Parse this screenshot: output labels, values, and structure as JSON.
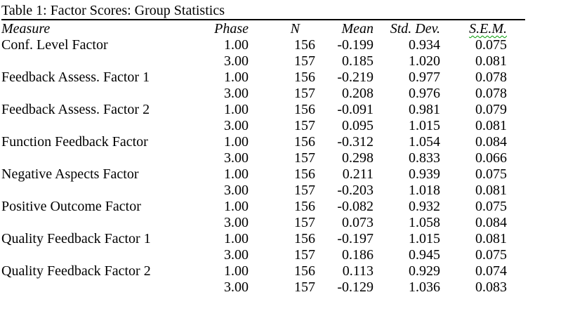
{
  "colors": {
    "background": "#ffffff",
    "text": "#000000",
    "caption_rule": "#000000",
    "sem_squiggle": "#009900"
  },
  "table": {
    "title": "Table 1: Factor Scores: Group Statistics",
    "columns": {
      "measure": "Measure",
      "phase": "Phase",
      "n": "N",
      "mean": "Mean",
      "std_dev": "Std. Dev.",
      "sem": "S.E.M."
    },
    "rows": [
      {
        "measure": "Conf. Level Factor",
        "phase": "1.00",
        "n": "156",
        "mean": "-0.199",
        "std_dev": "0.934",
        "sem": "0.075"
      },
      {
        "measure": "",
        "phase": "3.00",
        "n": "157",
        "mean": "0.185",
        "std_dev": "1.020",
        "sem": "0.081"
      },
      {
        "measure": "Feedback Assess. Factor 1",
        "phase": "1.00",
        "n": "156",
        "mean": "-0.219",
        "std_dev": "0.977",
        "sem": "0.078"
      },
      {
        "measure": "",
        "phase": "3.00",
        "n": "157",
        "mean": "0.208",
        "std_dev": "0.976",
        "sem": "0.078"
      },
      {
        "measure": "Feedback Assess. Factor 2",
        "phase": "1.00",
        "n": "156",
        "mean": "-0.091",
        "std_dev": "0.981",
        "sem": "0.079"
      },
      {
        "measure": "",
        "phase": "3.00",
        "n": "157",
        "mean": "0.095",
        "std_dev": "1.015",
        "sem": "0.081"
      },
      {
        "measure": "Function Feedback Factor",
        "phase": "1.00",
        "n": "156",
        "mean": "-0.312",
        "std_dev": "1.054",
        "sem": "0.084"
      },
      {
        "measure": "",
        "phase": "3.00",
        "n": "157",
        "mean": "0.298",
        "std_dev": "0.833",
        "sem": "0.066"
      },
      {
        "measure": "Negative Aspects Factor",
        "phase": "1.00",
        "n": "156",
        "mean": "0.211",
        "std_dev": "0.939",
        "sem": "0.075"
      },
      {
        "measure": "",
        "phase": "3.00",
        "n": "157",
        "mean": "-0.203",
        "std_dev": "1.018",
        "sem": "0.081"
      },
      {
        "measure": "Positive Outcome Factor",
        "phase": "1.00",
        "n": "156",
        "mean": "-0.082",
        "std_dev": "0.932",
        "sem": "0.075"
      },
      {
        "measure": "",
        "phase": "3.00",
        "n": "157",
        "mean": "0.073",
        "std_dev": "1.058",
        "sem": "0.084"
      },
      {
        "measure": "Quality Feedback Factor 1",
        "phase": "1.00",
        "n": "156",
        "mean": "-0.197",
        "std_dev": "1.015",
        "sem": "0.081"
      },
      {
        "measure": "",
        "phase": "3.00",
        "n": "157",
        "mean": "0.186",
        "std_dev": "0.945",
        "sem": "0.075"
      },
      {
        "measure": "Quality Feedback Factor 2",
        "phase": "1.00",
        "n": "156",
        "mean": "0.113",
        "std_dev": "0.929",
        "sem": "0.074"
      },
      {
        "measure": "",
        "phase": "3.00",
        "n": "157",
        "mean": "-0.129",
        "std_dev": "1.036",
        "sem": "0.083"
      }
    ]
  }
}
